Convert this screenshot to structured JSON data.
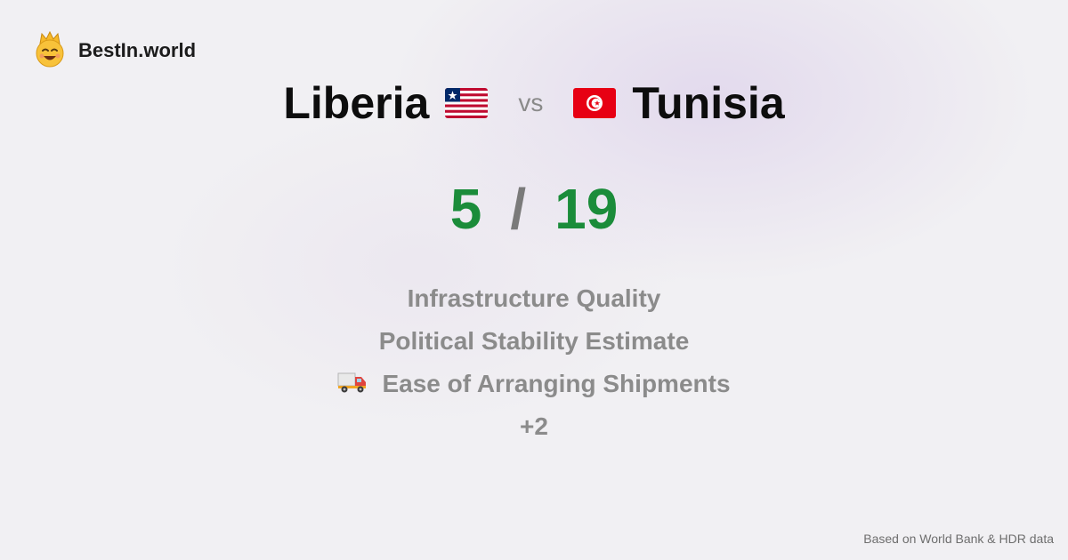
{
  "brand": {
    "name": "BestIn.world",
    "logo_icon": "crown-smiley-icon"
  },
  "comparison": {
    "left_country": "Liberia",
    "left_flag": "liberia-flag-icon",
    "vs_label": "vs",
    "right_country": "Tunisia",
    "right_flag": "tunisia-flag-icon"
  },
  "score": {
    "left": "5",
    "separator": "/",
    "right": "19",
    "color": "#1b8c3a"
  },
  "metrics": [
    {
      "label": "Infrastructure Quality"
    },
    {
      "label": "Political Stability Estimate"
    },
    {
      "label": "Ease of Arranging Shipments",
      "icon": "truck-icon"
    }
  ],
  "more_label": "+2",
  "footer": {
    "source_note": "Based on World Bank & HDR data"
  }
}
